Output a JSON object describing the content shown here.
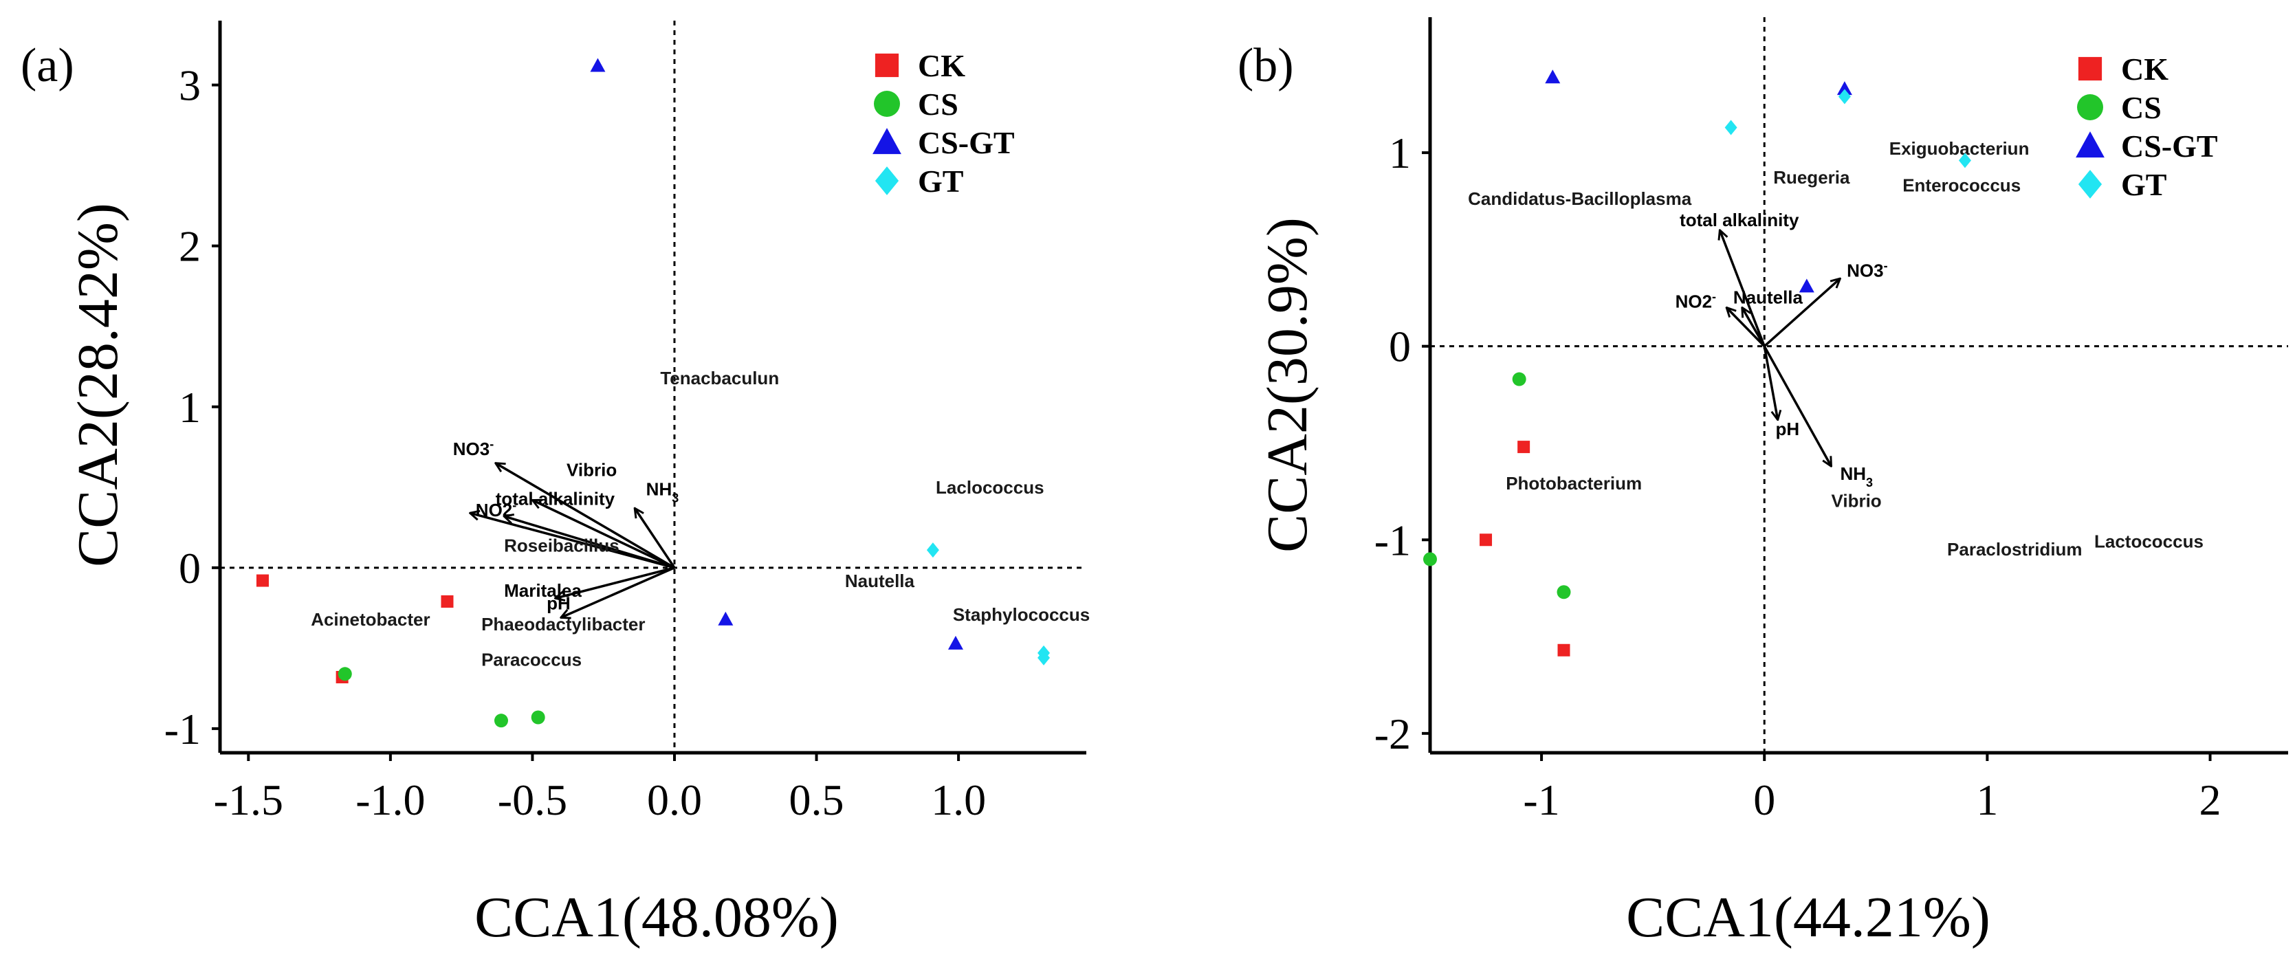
{
  "figure": {
    "description_labels": [
      "(a)",
      "(b)"
    ]
  },
  "colors": {
    "CK": "#ee2222",
    "CS": "#22c52a",
    "CS-GT": "#1414e6",
    "GT": "#22e5f2"
  },
  "chart_data": [
    {
      "type": "scatter",
      "panel_label": "(a)",
      "xlabel": "CCA1(48.08%)",
      "ylabel": "CCA2(28.42%)",
      "xlim": [
        -1.6,
        1.45
      ],
      "ylim": [
        -1.15,
        3.4
      ],
      "xticks": [
        -1.5,
        -1.0,
        -0.5,
        0.0,
        0.5,
        1.0
      ],
      "xtick_labels": [
        "-1.5",
        "-1.0",
        "-0.5",
        "0.0",
        "0.5",
        "1.0"
      ],
      "yticks": [
        -1,
        0,
        1,
        2,
        3
      ],
      "ytick_labels": [
        "-1",
        "0",
        "1",
        "2",
        "3"
      ],
      "legend": [
        "CK",
        "CS",
        "CS-GT",
        "GT"
      ],
      "series": [
        {
          "name": "CK",
          "marker": "square",
          "points": [
            [
              -1.45,
              -0.08
            ],
            [
              -0.8,
              -0.21
            ],
            [
              -1.17,
              -0.68
            ]
          ]
        },
        {
          "name": "CS",
          "marker": "circle",
          "points": [
            [
              -1.16,
              -0.66
            ],
            [
              -0.61,
              -0.95
            ],
            [
              -0.48,
              -0.93
            ]
          ]
        },
        {
          "name": "CS-GT",
          "marker": "triangle",
          "points": [
            [
              -0.27,
              3.12
            ],
            [
              0.18,
              -0.32
            ],
            [
              0.99,
              -0.47
            ]
          ]
        },
        {
          "name": "GT",
          "marker": "diamond",
          "points": [
            [
              0.91,
              0.11
            ],
            [
              1.3,
              -0.53
            ],
            [
              1.3,
              -0.56
            ]
          ]
        }
      ],
      "arrows": [
        {
          "label": "NO3",
          "sup": "-",
          "sub": "",
          "end": [
            -0.63,
            0.65
          ],
          "label_pos": [
            -0.78,
            0.7
          ]
        },
        {
          "label": "Vibrio",
          "sup": "",
          "sub": "",
          "end": [
            -0.5,
            0.42
          ],
          "label_pos": [
            -0.38,
            0.57
          ]
        },
        {
          "label": "total alkalinity",
          "sup": "",
          "sub": "",
          "end": [
            -0.72,
            0.34
          ],
          "label_pos": [
            -0.63,
            0.39
          ]
        },
        {
          "label": "NO2",
          "sup": "-",
          "sub": "",
          "end": [
            -0.6,
            0.32
          ],
          "label_pos": [
            -0.7,
            0.32
          ]
        },
        {
          "label": "NH3",
          "sup": "",
          "sub": "3",
          "end": [
            -0.14,
            0.37
          ],
          "label_pos": [
            -0.1,
            0.45
          ]
        },
        {
          "label": "pH",
          "sup": "",
          "sub": "",
          "end": [
            -0.4,
            -0.31
          ],
          "label_pos": [
            -0.45,
            -0.26
          ]
        },
        {
          "label": "Maritalea",
          "sup": "",
          "sub": "",
          "end": [
            -0.42,
            -0.19
          ],
          "label_pos": [
            -0.6,
            -0.18
          ]
        }
      ],
      "annotations": [
        {
          "text": "Tenacbaculun",
          "pos": [
            -0.05,
            1.14
          ]
        },
        {
          "text": "Laclococcus",
          "pos": [
            0.92,
            0.46
          ]
        },
        {
          "text": "Roseibacillus",
          "pos": [
            -0.6,
            0.1
          ]
        },
        {
          "text": "Acinetobacter",
          "pos": [
            -1.28,
            -0.36
          ]
        },
        {
          "text": "Phaeodactylibacter",
          "pos": [
            -0.68,
            -0.39
          ]
        },
        {
          "text": "Paracoccus",
          "pos": [
            -0.68,
            -0.61
          ]
        },
        {
          "text": "Nautella",
          "pos": [
            0.6,
            -0.12
          ]
        },
        {
          "text": "Staphylococcus",
          "pos": [
            0.98,
            -0.33
          ]
        }
      ]
    },
    {
      "type": "scatter",
      "panel_label": "(b)",
      "xlabel": "CCA1(44.21%)",
      "ylabel": "CCA2(30.9%)",
      "xlim": [
        -1.5,
        2.35
      ],
      "ylim": [
        -2.1,
        1.7
      ],
      "xticks": [
        -1,
        0,
        1,
        2
      ],
      "xtick_labels": [
        "-1",
        "0",
        "1",
        "2"
      ],
      "yticks": [
        -2,
        -1,
        0,
        1
      ],
      "ytick_labels": [
        "-2",
        "-1",
        "0",
        "1"
      ],
      "legend": [
        "CK",
        "CS",
        "CS-GT",
        "GT"
      ],
      "series": [
        {
          "name": "CK",
          "marker": "square",
          "points": [
            [
              -1.08,
              -0.52
            ],
            [
              -1.25,
              -1.0
            ],
            [
              -0.9,
              -1.57
            ]
          ]
        },
        {
          "name": "CS",
          "marker": "circle",
          "points": [
            [
              -1.1,
              -0.17
            ],
            [
              -1.5,
              -1.1
            ],
            [
              -0.9,
              -1.27
            ]
          ]
        },
        {
          "name": "CS-GT",
          "marker": "triangle",
          "points": [
            [
              -0.95,
              1.39
            ],
            [
              0.36,
              1.33
            ],
            [
              0.19,
              0.31
            ]
          ]
        },
        {
          "name": "GT",
          "marker": "diamond",
          "points": [
            [
              -0.15,
              1.13
            ],
            [
              0.36,
              1.29
            ],
            [
              0.9,
              0.96
            ]
          ]
        }
      ],
      "arrows": [
        {
          "label": "total alkalinity",
          "sup": "",
          "sub": "",
          "end": [
            -0.2,
            0.6
          ],
          "label_pos": [
            -0.38,
            0.62
          ]
        },
        {
          "label": "NO3",
          "sup": "-",
          "sub": "",
          "end": [
            0.34,
            0.35
          ],
          "label_pos": [
            0.37,
            0.36
          ]
        },
        {
          "label": "NO2",
          "sup": "-",
          "sub": "",
          "end": [
            -0.17,
            0.2
          ],
          "label_pos": [
            -0.4,
            0.2
          ]
        },
        {
          "label": "Nautella",
          "sup": "",
          "sub": "",
          "end": [
            -0.1,
            0.2
          ],
          "label_pos": [
            -0.14,
            0.22
          ]
        },
        {
          "label": "pH",
          "sup": "",
          "sub": "",
          "end": [
            0.06,
            -0.38
          ],
          "label_pos": [
            0.05,
            -0.46
          ]
        },
        {
          "label": "NH3",
          "sup": "",
          "sub": "3",
          "end": [
            0.3,
            -0.62
          ],
          "label_pos": [
            0.34,
            -0.69
          ]
        }
      ],
      "annotations": [
        {
          "text": "Candidatus-Bacilloplasma",
          "pos": [
            -1.33,
            0.73
          ]
        },
        {
          "text": "Ruegeria",
          "pos": [
            0.04,
            0.84
          ]
        },
        {
          "text": "Exiguobacteriun",
          "pos": [
            0.56,
            0.99
          ]
        },
        {
          "text": "Enterococcus",
          "pos": [
            0.62,
            0.8
          ]
        },
        {
          "text": "Photobacterium",
          "pos": [
            -1.16,
            -0.74
          ]
        },
        {
          "text": "Vibrio",
          "pos": [
            0.3,
            -0.83
          ]
        },
        {
          "text": "Paraclostridium",
          "pos": [
            0.82,
            -1.08
          ]
        },
        {
          "text": "Lactococcus",
          "pos": [
            1.48,
            -1.04
          ]
        }
      ]
    }
  ]
}
